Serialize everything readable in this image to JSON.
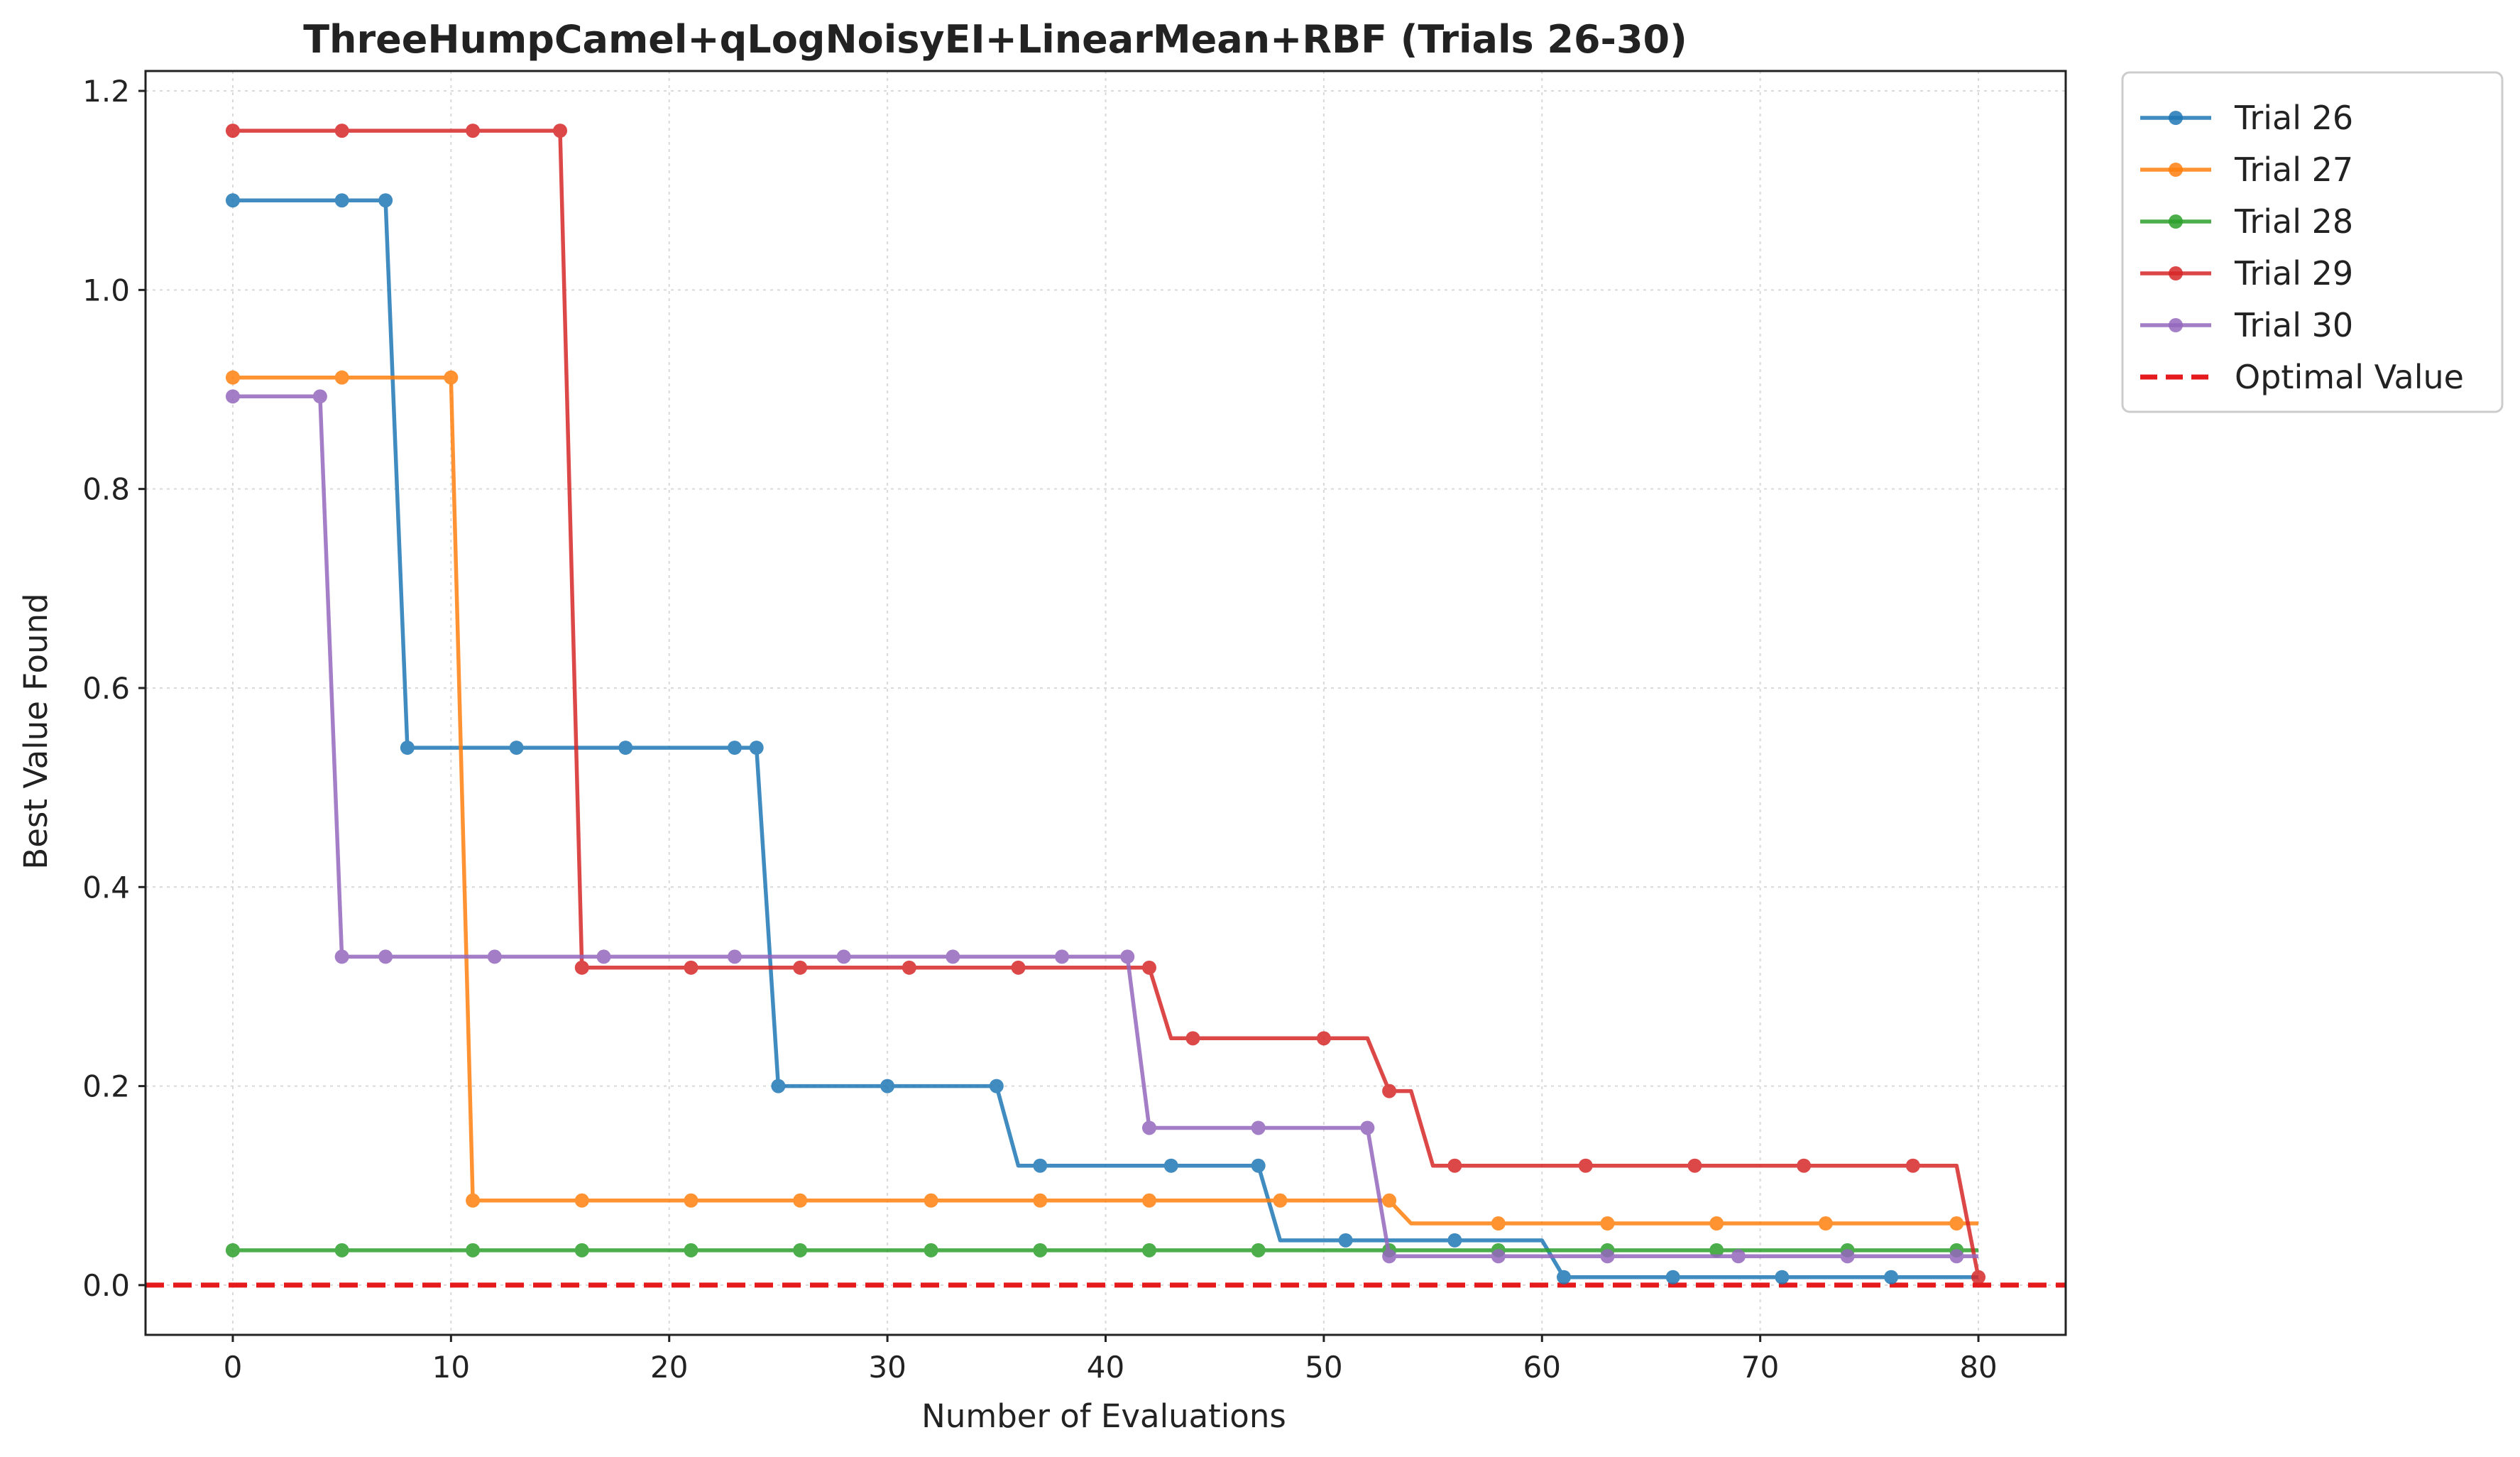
{
  "chart_data": {
    "type": "line",
    "title": "ThreeHumpCamel+qLogNoisyEI+LinearMean+RBF (Trials 26-30)",
    "xlabel": "Number of Evaluations",
    "ylabel": "Best Value Found",
    "xlim": [
      -4,
      84
    ],
    "ylim": [
      -0.05,
      1.22
    ],
    "xticks": [
      0,
      10,
      20,
      30,
      40,
      50,
      60,
      70,
      80
    ],
    "xtick_labels": [
      "0",
      "10",
      "20",
      "30",
      "40",
      "50",
      "60",
      "70",
      "80"
    ],
    "yticks": [
      0.0,
      0.2,
      0.4,
      0.6,
      0.8,
      1.0,
      1.2
    ],
    "ytick_labels": [
      "0.0",
      "0.2",
      "0.4",
      "0.6",
      "0.8",
      "1.0",
      "1.2"
    ],
    "grid": true,
    "legend_position": "outside-top-right",
    "series": [
      {
        "name": "Trial 26",
        "color": "#1f77b4",
        "x": [
          0,
          5,
          7,
          8,
          13,
          18,
          23,
          24,
          25,
          30,
          35,
          36,
          37,
          43,
          47,
          48,
          51,
          56,
          60,
          61,
          66,
          71,
          76,
          80
        ],
        "y": [
          1.09,
          1.09,
          1.09,
          0.54,
          0.54,
          0.54,
          0.54,
          0.54,
          0.2,
          0.2,
          0.2,
          0.12,
          0.12,
          0.12,
          0.12,
          0.045,
          0.045,
          0.045,
          0.045,
          0.008,
          0.008,
          0.008,
          0.008,
          0.008
        ],
        "markers_x": [
          0,
          5,
          7,
          8,
          13,
          18,
          23,
          24,
          25,
          30,
          35,
          37,
          43,
          47,
          51,
          56,
          61,
          66,
          71,
          76
        ]
      },
      {
        "name": "Trial 27",
        "color": "#ff7f0e",
        "x": [
          0,
          5,
          10,
          11,
          16,
          21,
          26,
          32,
          37,
          42,
          48,
          53,
          54,
          58,
          63,
          68,
          73,
          79,
          80
        ],
        "y": [
          0.912,
          0.912,
          0.912,
          0.085,
          0.085,
          0.085,
          0.085,
          0.085,
          0.085,
          0.085,
          0.085,
          0.085,
          0.062,
          0.062,
          0.062,
          0.062,
          0.062,
          0.062,
          0.062
        ],
        "markers_x": [
          0,
          5,
          10,
          11,
          16,
          21,
          26,
          32,
          37,
          42,
          48,
          53,
          58,
          63,
          68,
          73,
          79
        ]
      },
      {
        "name": "Trial 28",
        "color": "#2ca02c",
        "x": [
          0,
          5,
          11,
          16,
          21,
          26,
          32,
          37,
          42,
          47,
          53,
          58,
          63,
          68,
          74,
          79,
          80
        ],
        "y": [
          0.035,
          0.035,
          0.035,
          0.035,
          0.035,
          0.035,
          0.035,
          0.035,
          0.035,
          0.035,
          0.035,
          0.035,
          0.035,
          0.035,
          0.035,
          0.035,
          0.035
        ],
        "markers_x": [
          0,
          5,
          11,
          16,
          21,
          26,
          32,
          37,
          42,
          47,
          53,
          58,
          63,
          68,
          74,
          79
        ]
      },
      {
        "name": "Trial 29",
        "color": "#d62728",
        "x": [
          0,
          5,
          11,
          15,
          16,
          21,
          26,
          31,
          36,
          42,
          43,
          44,
          50,
          52,
          53,
          54,
          55,
          56,
          62,
          67,
          72,
          77,
          79,
          80
        ],
        "y": [
          1.16,
          1.16,
          1.16,
          1.16,
          0.319,
          0.319,
          0.319,
          0.319,
          0.319,
          0.319,
          0.248,
          0.248,
          0.248,
          0.248,
          0.195,
          0.195,
          0.12,
          0.12,
          0.12,
          0.12,
          0.12,
          0.12,
          0.12,
          0.008
        ],
        "markers_x": [
          0,
          5,
          11,
          15,
          16,
          21,
          26,
          31,
          36,
          42,
          44,
          50,
          53,
          56,
          62,
          67,
          72,
          77,
          80
        ]
      },
      {
        "name": "Trial 30",
        "color": "#9467bd",
        "x": [
          0,
          4,
          5,
          7,
          12,
          17,
          23,
          28,
          33,
          38,
          41,
          42,
          47,
          52,
          53,
          58,
          63,
          69,
          74,
          79,
          80
        ],
        "y": [
          0.893,
          0.893,
          0.33,
          0.33,
          0.33,
          0.33,
          0.33,
          0.33,
          0.33,
          0.33,
          0.33,
          0.158,
          0.158,
          0.158,
          0.029,
          0.029,
          0.029,
          0.029,
          0.029,
          0.029,
          0.029
        ],
        "markers_x": [
          0,
          4,
          5,
          7,
          12,
          17,
          23,
          28,
          33,
          38,
          41,
          42,
          47,
          52,
          53,
          58,
          63,
          69,
          74,
          79
        ]
      }
    ],
    "reference_line": {
      "name": "Optimal Value",
      "y": 0.0,
      "color": "#e41a1c",
      "style": "dashed"
    }
  }
}
